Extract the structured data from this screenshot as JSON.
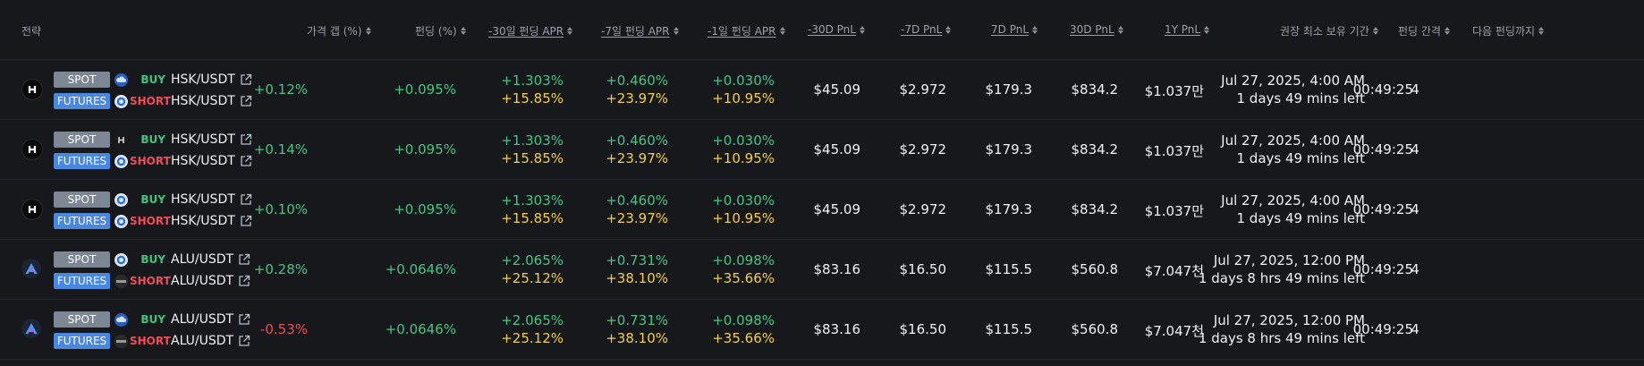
{
  "headers": {
    "strategy": "전략",
    "price_gap": "가격 갭 (%)",
    "funding": "펀딩 (%)",
    "apr30": "-30일 펀딩 APR",
    "apr7": "-7일 펀딩 APR",
    "apr1": "-1일 펀딩 APR",
    "pnl_m30": "-30D PnL",
    "pnl_m7": "-7D PnL",
    "pnl_7": "7D PnL",
    "pnl_30": "30D PnL",
    "pnl_1y": "1Y PnL",
    "hold": "권장 최소 보유 기간",
    "interval": "펀딩 간격",
    "next": "다음 펀딩까지"
  },
  "labels": {
    "spot": "SPOT",
    "futures": "FUTURES",
    "buy": "BUY",
    "short": "SHORT"
  },
  "rows": [
    {
      "coin": "H",
      "spot_ex": "cloud",
      "fut_ex": "ring",
      "spot_pair": "HSK/USDT",
      "fut_pair": "HSK/USDT",
      "gap": "+0.12%",
      "funding": "+0.095%",
      "apr30a": "+1.303%",
      "apr30b": "+15.85%",
      "apr7a": "+0.460%",
      "apr7b": "+23.97%",
      "apr1a": "+0.030%",
      "apr1b": "+10.95%",
      "pnl_m30": "$45.09",
      "pnl_m7": "$2.972",
      "pnl_7": "$179.3",
      "pnl_30": "$834.2",
      "pnl_1y": "$1.037만",
      "hold_date": "Jul 27, 2025, 4:00 AM",
      "hold_left": "1 days 49 mins left",
      "interval": "4",
      "next": "00:49:25"
    },
    {
      "coin": "H",
      "spot_ex": "hx",
      "fut_ex": "ring",
      "spot_pair": "HSK/USDT",
      "fut_pair": "HSK/USDT",
      "gap": "+0.14%",
      "funding": "+0.095%",
      "apr30a": "+1.303%",
      "apr30b": "+15.85%",
      "apr7a": "+0.460%",
      "apr7b": "+23.97%",
      "apr1a": "+0.030%",
      "apr1b": "+10.95%",
      "pnl_m30": "$45.09",
      "pnl_m7": "$2.972",
      "pnl_7": "$179.3",
      "pnl_30": "$834.2",
      "pnl_1y": "$1.037만",
      "hold_date": "Jul 27, 2025, 4:00 AM",
      "hold_left": "1 days 49 mins left",
      "interval": "4",
      "next": "00:49:25"
    },
    {
      "coin": "H",
      "spot_ex": "ring",
      "fut_ex": "ring",
      "spot_pair": "HSK/USDT",
      "fut_pair": "HSK/USDT",
      "gap": "+0.10%",
      "funding": "+0.095%",
      "apr30a": "+1.303%",
      "apr30b": "+15.85%",
      "apr7a": "+0.460%",
      "apr7b": "+23.97%",
      "apr1a": "+0.030%",
      "apr1b": "+10.95%",
      "pnl_m30": "$45.09",
      "pnl_m7": "$2.972",
      "pnl_7": "$179.3",
      "pnl_30": "$834.2",
      "pnl_1y": "$1.037만",
      "hold_date": "Jul 27, 2025, 4:00 AM",
      "hold_left": "1 days 49 mins left",
      "interval": "4",
      "next": "00:49:25"
    },
    {
      "coin": "A",
      "spot_ex": "ring",
      "fut_ex": "mini",
      "spot_pair": "ALU/USDT",
      "fut_pair": "ALU/USDT",
      "gap": "+0.28%",
      "funding": "+0.0646%",
      "apr30a": "+2.065%",
      "apr30b": "+25.12%",
      "apr7a": "+0.731%",
      "apr7b": "+38.10%",
      "apr1a": "+0.098%",
      "apr1b": "+35.66%",
      "pnl_m30": "$83.16",
      "pnl_m7": "$16.50",
      "pnl_7": "$115.5",
      "pnl_30": "$560.8",
      "pnl_1y": "$7.047천",
      "hold_date": "Jul 27, 2025, 12:00 PM",
      "hold_left": "1 days 8 hrs 49 mins left",
      "interval": "4",
      "next": "00:49:25"
    },
    {
      "coin": "A",
      "spot_ex": "cloud",
      "fut_ex": "mini",
      "spot_pair": "ALU/USDT",
      "fut_pair": "ALU/USDT",
      "gap": "-0.53%",
      "funding": "+0.0646%",
      "apr30a": "+2.065%",
      "apr30b": "+25.12%",
      "apr7a": "+0.731%",
      "apr7b": "+38.10%",
      "apr1a": "+0.098%",
      "apr1b": "+35.66%",
      "pnl_m30": "$83.16",
      "pnl_m7": "$16.50",
      "pnl_7": "$115.5",
      "pnl_30": "$560.8",
      "pnl_1y": "$7.047천",
      "hold_date": "Jul 27, 2025, 12:00 PM",
      "hold_left": "1 days 8 hrs 49 mins left",
      "interval": "4",
      "next": "00:49:25"
    }
  ],
  "colors": {
    "green": "#48c486",
    "red": "#ef4d5a",
    "yellow": "#f2cf4a",
    "futures_tag": "#4a88e0",
    "spot_tag": "#7d8794"
  }
}
